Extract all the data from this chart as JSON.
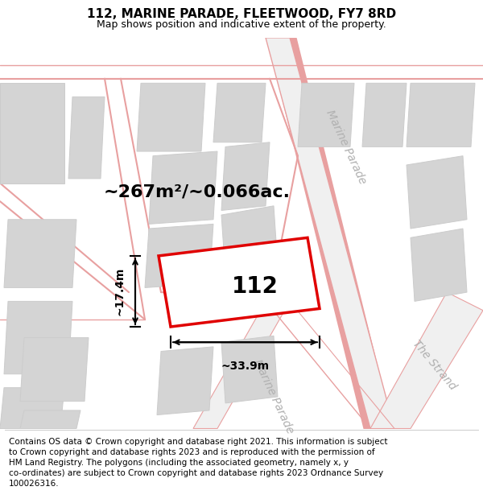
{
  "title": "112, MARINE PARADE, FLEETWOOD, FY7 8RD",
  "subtitle": "Map shows position and indicative extent of the property.",
  "footer": "Contains OS data © Crown copyright and database right 2021. This information is subject\nto Crown copyright and database rights 2023 and is reproduced with the permission of\nHM Land Registry. The polygons (including the associated geometry, namely x, y\nco-ordinates) are subject to Crown copyright and database rights 2023 Ordnance Survey\n100026316.",
  "area_label": "~267m²/~0.066ac.",
  "property_number": "112",
  "width_label": "~33.9m",
  "height_label": "~17.4m",
  "bg_color": "#f5f5f5",
  "map_bg": "#ffffff",
  "road_stroke": "#e8a0a0",
  "building_fill": "#d4d4d4",
  "building_edge": "#cccccc",
  "property_stroke": "#e00000",
  "property_fill": "#ffffff",
  "dim_color": "#000000",
  "road_label_color": "#b0b0b0",
  "title_fontsize": 11,
  "subtitle_fontsize": 9,
  "footer_fontsize": 7.5,
  "area_label_fontsize": 16,
  "number_fontsize": 20,
  "dim_fontsize": 10,
  "road_label_fontsize": 10
}
